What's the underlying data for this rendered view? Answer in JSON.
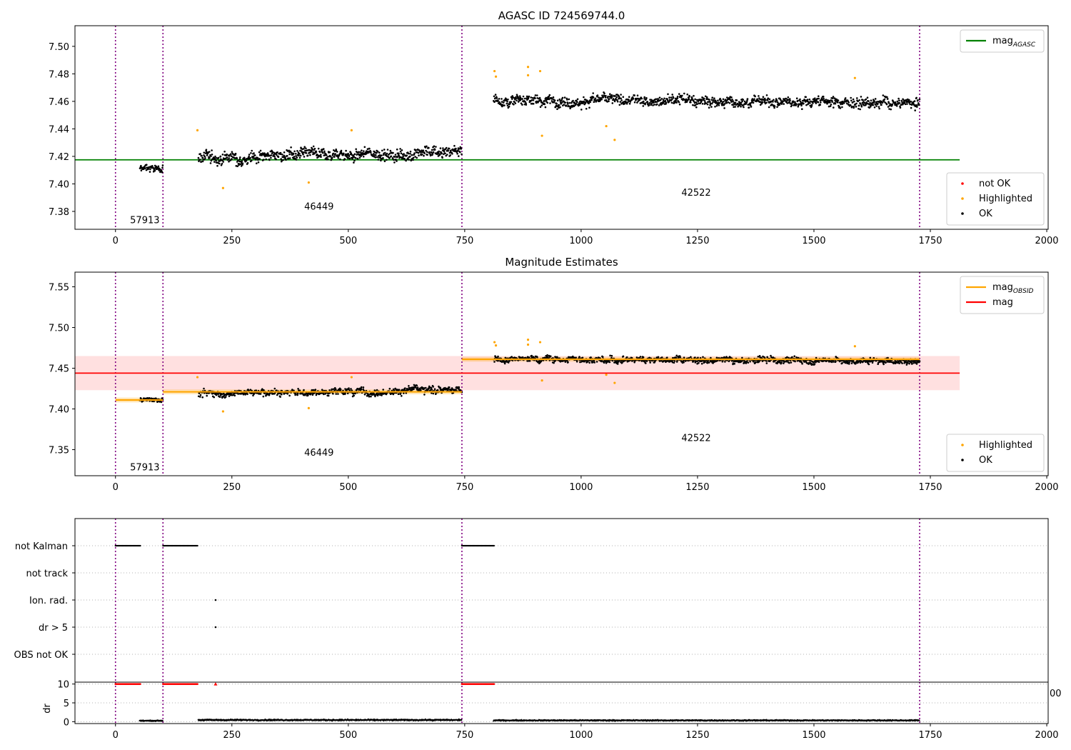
{
  "chart_data": [
    {
      "type": "scatter",
      "title": "AGASC ID 724569744.0",
      "xlim": [
        -87,
        2003
      ],
      "ylim": [
        7.367,
        7.515
      ],
      "xticks": [
        0,
        250,
        500,
        750,
        1000,
        1250,
        1500,
        1750,
        2000
      ],
      "yticks": [
        7.38,
        7.4,
        7.42,
        7.44,
        7.46,
        7.48,
        7.5
      ],
      "vlines": [
        0,
        102,
        744,
        1727
      ],
      "annotations": [
        {
          "text": "57913",
          "x": 16,
          "y": 7.374
        },
        {
          "text": "46449",
          "x": 390,
          "y": 7.384
        },
        {
          "text": "42522",
          "x": 1200,
          "y": 7.394
        }
      ],
      "lines": [
        {
          "name": "mag_AGASC",
          "color": "#008000",
          "x": [
            -87,
            1813
          ],
          "y": [
            7.4175,
            7.4175
          ]
        }
      ],
      "segments": [
        {
          "x0": 52,
          "x1": 102,
          "mean": 7.411,
          "spread": 0.004,
          "trend": 0.0
        },
        {
          "x0": 178,
          "x1": 744,
          "mean": 7.421,
          "spread": 0.006,
          "trend": 0.004
        },
        {
          "x0": 812,
          "x1": 1727,
          "mean": 7.46,
          "spread": 0.0055,
          "trend": -0.002
        }
      ],
      "highlighted": [
        {
          "x": 176,
          "y": 7.439
        },
        {
          "x": 231,
          "y": 7.397
        },
        {
          "x": 415,
          "y": 7.401
        },
        {
          "x": 507,
          "y": 7.439
        },
        {
          "x": 814,
          "y": 7.482
        },
        {
          "x": 817,
          "y": 7.478
        },
        {
          "x": 886,
          "y": 7.485
        },
        {
          "x": 886,
          "y": 7.479
        },
        {
          "x": 912,
          "y": 7.482
        },
        {
          "x": 916,
          "y": 7.435
        },
        {
          "x": 1054,
          "y": 7.442
        },
        {
          "x": 1072,
          "y": 7.432
        },
        {
          "x": 1588,
          "y": 7.477
        }
      ],
      "legends": [
        {
          "position": "upper right",
          "entries": [
            {
              "label": "mag",
              "sub": "AGASC",
              "color": "#008000",
              "kind": "line"
            }
          ]
        },
        {
          "position": "lower right",
          "entries": [
            {
              "label": "not OK",
              "color": "#ff0000",
              "kind": "dot"
            },
            {
              "label": "Highlighted",
              "color": "#ffa500",
              "kind": "dot"
            },
            {
              "label": "OK",
              "color": "#000000",
              "kind": "dot"
            }
          ]
        }
      ]
    },
    {
      "type": "scatter",
      "title": "Magnitude Estimates",
      "xlim": [
        -87,
        2003
      ],
      "ylim": [
        7.318,
        7.568
      ],
      "xticks": [
        0,
        250,
        500,
        750,
        1000,
        1250,
        1500,
        1750,
        2000
      ],
      "yticks": [
        7.35,
        7.4,
        7.45,
        7.5,
        7.55
      ],
      "vlines": [
        0,
        102,
        744,
        1727
      ],
      "annotations": [
        {
          "text": "57913",
          "x": 16,
          "y": 7.329
        },
        {
          "text": "46449",
          "x": 390,
          "y": 7.347
        },
        {
          "text": "42522",
          "x": 1200,
          "y": 7.365
        }
      ],
      "mag": {
        "value": 7.444,
        "band": [
          7.423,
          7.465
        ],
        "x": [
          -87,
          1813
        ],
        "color": "#ff0000"
      },
      "obsid_steps": [
        {
          "x0": 0,
          "x1": 102,
          "y": 7.411
        },
        {
          "x0": 102,
          "x1": 744,
          "y": 7.421
        },
        {
          "x0": 744,
          "x1": 1727,
          "y": 7.461
        }
      ],
      "segments": [
        {
          "x0": 52,
          "x1": 102,
          "mean": 7.411,
          "spread": 0.004,
          "trend": 0.0
        },
        {
          "x0": 178,
          "x1": 744,
          "mean": 7.421,
          "spread": 0.006,
          "trend": 0.004
        },
        {
          "x0": 812,
          "x1": 1727,
          "mean": 7.46,
          "spread": 0.0055,
          "trend": -0.002
        }
      ],
      "highlighted": [
        {
          "x": 176,
          "y": 7.439
        },
        {
          "x": 231,
          "y": 7.397
        },
        {
          "x": 415,
          "y": 7.401
        },
        {
          "x": 507,
          "y": 7.439
        },
        {
          "x": 814,
          "y": 7.482
        },
        {
          "x": 817,
          "y": 7.478
        },
        {
          "x": 886,
          "y": 7.485
        },
        {
          "x": 886,
          "y": 7.479
        },
        {
          "x": 912,
          "y": 7.482
        },
        {
          "x": 916,
          "y": 7.435
        },
        {
          "x": 1054,
          "y": 7.442
        },
        {
          "x": 1072,
          "y": 7.432
        },
        {
          "x": 1588,
          "y": 7.477
        }
      ],
      "legends": [
        {
          "position": "upper right",
          "entries": [
            {
              "label": "mag",
              "sub": "OBSID",
              "color": "#ffa500",
              "kind": "line"
            },
            {
              "label": "mag",
              "sub": "",
              "color": "#ff0000",
              "kind": "line"
            }
          ]
        },
        {
          "position": "lower right",
          "entries": [
            {
              "label": "Highlighted",
              "color": "#ffa500",
              "kind": "dot"
            },
            {
              "label": "OK",
              "color": "#000000",
              "kind": "dot"
            }
          ]
        }
      ]
    },
    {
      "type": "scatter",
      "title": "",
      "xlim": [
        -87,
        2003
      ],
      "categories": [
        "not Kalman",
        "not track",
        "Ion. rad.",
        "dr > 5",
        "OBS not OK"
      ],
      "vlines": [
        0,
        102,
        744,
        1727
      ],
      "flags": [
        {
          "category": "not Kalman",
          "ranges": [
            [
              0,
              54
            ],
            [
              102,
              177
            ],
            [
              744,
              813
            ]
          ]
        },
        {
          "category": "Ion. rad.",
          "points": [
            215
          ]
        },
        {
          "category": "dr > 5",
          "points": [
            215
          ]
        }
      ]
    },
    {
      "type": "scatter",
      "title": "",
      "ylabel": "dr",
      "xlim": [
        -87,
        2003
      ],
      "ylim": [
        -0.5,
        10.5
      ],
      "yticks": [
        0,
        5,
        10
      ],
      "xticks": [
        0,
        250,
        500,
        750,
        1000,
        1250,
        1500,
        1750,
        2000
      ],
      "stray_tick": "00",
      "vlines": [
        0,
        102,
        744,
        1727
      ],
      "clipped": {
        "value": 10,
        "ranges": [
          [
            0,
            54
          ],
          [
            102,
            177
          ],
          [
            744,
            813
          ]
        ],
        "points": [
          215
        ],
        "color": "#ff0000"
      },
      "dr_segments": [
        {
          "x0": 52,
          "x1": 102,
          "mean": 0.25,
          "spread": 0.15
        },
        {
          "x0": 178,
          "x1": 744,
          "mean": 0.45,
          "spread": 0.25
        },
        {
          "x0": 812,
          "x1": 1727,
          "mean": 0.35,
          "spread": 0.2
        }
      ]
    }
  ]
}
